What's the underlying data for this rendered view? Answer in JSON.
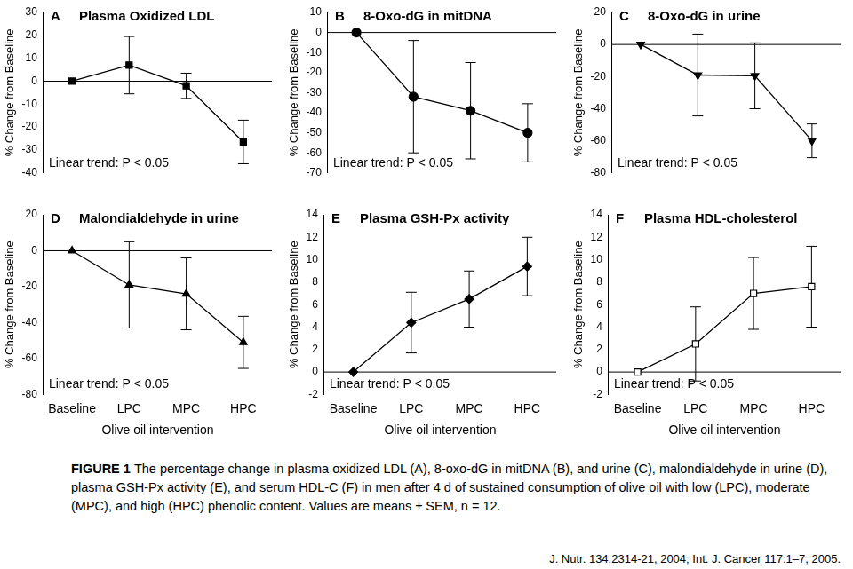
{
  "chart_data": [
    {
      "type": "line",
      "panel": "A",
      "title": "Plasma Oxidized LDL",
      "categories": [
        null,
        null,
        null,
        null
      ],
      "values": [
        0,
        7,
        -2,
        -26.5
      ],
      "errors": [
        0,
        12.5,
        5.5,
        9.5
      ],
      "marker": "square",
      "color": "#000000",
      "y_label": "% Change from Baseline",
      "ylim": [
        -40,
        30
      ],
      "yticks": [
        -40,
        -30,
        -20,
        -10,
        0,
        10,
        20,
        30
      ],
      "annotations": [
        "Linear trend: P < 0.05"
      ],
      "grid": false
    },
    {
      "type": "line",
      "panel": "B",
      "title": "8-Oxo-dG in mitDNA",
      "categories": [
        null,
        null,
        null,
        null
      ],
      "values": [
        0,
        -32,
        -39,
        -50
      ],
      "errors": [
        0,
        28,
        24,
        14.5
      ],
      "marker": "circle",
      "color": "#000000",
      "y_label": "% Change from Baseline",
      "ylim": [
        -70,
        10
      ],
      "yticks": [
        -70,
        -60,
        -50,
        -40,
        -30,
        -20,
        -10,
        0,
        10
      ],
      "annotations": [
        "Linear trend: P < 0.05"
      ],
      "grid": false
    },
    {
      "type": "line",
      "panel": "C",
      "title": "8-Oxo-dG in urine",
      "categories": [
        null,
        null,
        null,
        null
      ],
      "values": [
        0,
        -19,
        -19.5,
        -60
      ],
      "errors": [
        0,
        25.5,
        20.5,
        10.5
      ],
      "marker": "triangle-down",
      "color": "#000000",
      "y_label": "% Change from Baseline",
      "ylim": [
        -80,
        20
      ],
      "yticks": [
        -80,
        -60,
        -40,
        -20,
        0,
        20
      ],
      "annotations": [
        "Linear trend: P < 0.05"
      ],
      "grid": false
    },
    {
      "type": "line",
      "panel": "D",
      "title": "Malondialdehyde in urine",
      "categories": [
        "Baseline",
        "LPC",
        "MPC",
        "HPC"
      ],
      "values": [
        0,
        -19,
        -24,
        -51
      ],
      "errors": [
        0,
        24,
        20,
        14.5
      ],
      "marker": "triangle",
      "color": "#000000",
      "x_label": "Olive oil intervention",
      "y_label": "% Change from Baseline",
      "ylim": [
        -80,
        20
      ],
      "yticks": [
        -80,
        -60,
        -40,
        -20,
        0,
        20
      ],
      "annotations": [
        "Linear trend: P < 0.05"
      ],
      "grid": false
    },
    {
      "type": "line",
      "panel": "E",
      "title": "Plasma GSH-Px activity",
      "categories": [
        "Baseline",
        "LPC",
        "MPC",
        "HPC"
      ],
      "values": [
        0,
        4.4,
        6.5,
        9.4
      ],
      "errors": [
        0,
        2.7,
        2.5,
        2.6
      ],
      "marker": "diamond",
      "color": "#000000",
      "x_label": "Olive oil intervention",
      "y_label": "% Change from Baseline",
      "ylim": [
        -2,
        14
      ],
      "yticks": [
        -2,
        0,
        2,
        4,
        6,
        8,
        10,
        12,
        14
      ],
      "annotations": [
        "Linear trend: P < 0.05"
      ],
      "grid": false
    },
    {
      "type": "line",
      "panel": "F",
      "title": "Plasma HDL-cholesterol",
      "categories": [
        "Baseline",
        "LPC",
        "MPC",
        "HPC"
      ],
      "values": [
        0,
        2.5,
        7,
        7.6
      ],
      "errors": [
        0,
        3.3,
        3.2,
        3.6
      ],
      "marker": "open-square",
      "color": "#000000",
      "x_label": "Olive oil intervention",
      "y_label": "% Change from Baseline",
      "ylim": [
        -2,
        14
      ],
      "yticks": [
        -2,
        0,
        2,
        4,
        6,
        8,
        10,
        12,
        14
      ],
      "annotations": [
        "Linear trend: P < 0.05"
      ],
      "grid": false
    }
  ],
  "caption": {
    "label": "FIGURE 1",
    "text": "The percentage change in plasma oxidized LDL (A), 8-oxo-dG in mitDNA (B), and urine (C), malondialdehyde in urine (D), plasma GSH-Px activity (E), and serum HDL-C (F) in men after 4 d of sustained consumption of olive oil with low (LPC), moderate (MPC), and high (HPC) phenolic content. Values are means ± SEM, n = 12."
  },
  "source": "J. Nutr. 134:2314-21, 2004; Int. J. Cancer 117:1–7, 2005."
}
